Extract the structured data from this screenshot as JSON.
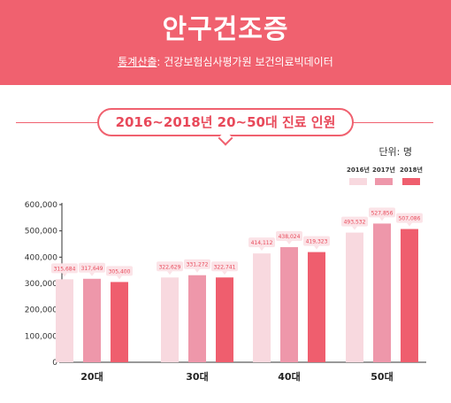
{
  "header": {
    "title": "안구건조증",
    "source_label": "통계산출",
    "source_text": ": 건강보험심사평가원 보건의료빅데이터"
  },
  "banner": "2016~2018년 20~50대 진료 인원",
  "unit": "단위: 명",
  "colors": {
    "2016년": "#f8d9df",
    "2017년": "#ee97aa",
    "2018년": "#ef5e6e",
    "header": "#f0616f"
  },
  "chart_data": {
    "type": "bar",
    "title": "",
    "categories": [
      "20대",
      "30대",
      "40대",
      "50대"
    ],
    "series": [
      {
        "name": "2016년",
        "values": [
          315684,
          322629,
          414112,
          493532
        ],
        "labels": [
          "315,684",
          "322,629",
          "414,112",
          "493,532"
        ]
      },
      {
        "name": "2017년",
        "values": [
          317649,
          331272,
          438024,
          527856
        ],
        "labels": [
          "317,649",
          "331,272",
          "438,024",
          "527,856"
        ]
      },
      {
        "name": "2018년",
        "values": [
          305400,
          322741,
          419323,
          507086
        ],
        "labels": [
          "305,400",
          "322,741",
          "419,323",
          "507,086"
        ]
      }
    ],
    "ylim": [
      0,
      600000
    ],
    "yticks": [
      0,
      100000,
      200000,
      300000,
      400000,
      500000,
      600000
    ],
    "ytick_labels": [
      "0",
      "100,000",
      "200,000",
      "300,000",
      "400,000",
      "500,000",
      "600,000"
    ],
    "y_axis_break": true,
    "legend_position": "top-right"
  }
}
